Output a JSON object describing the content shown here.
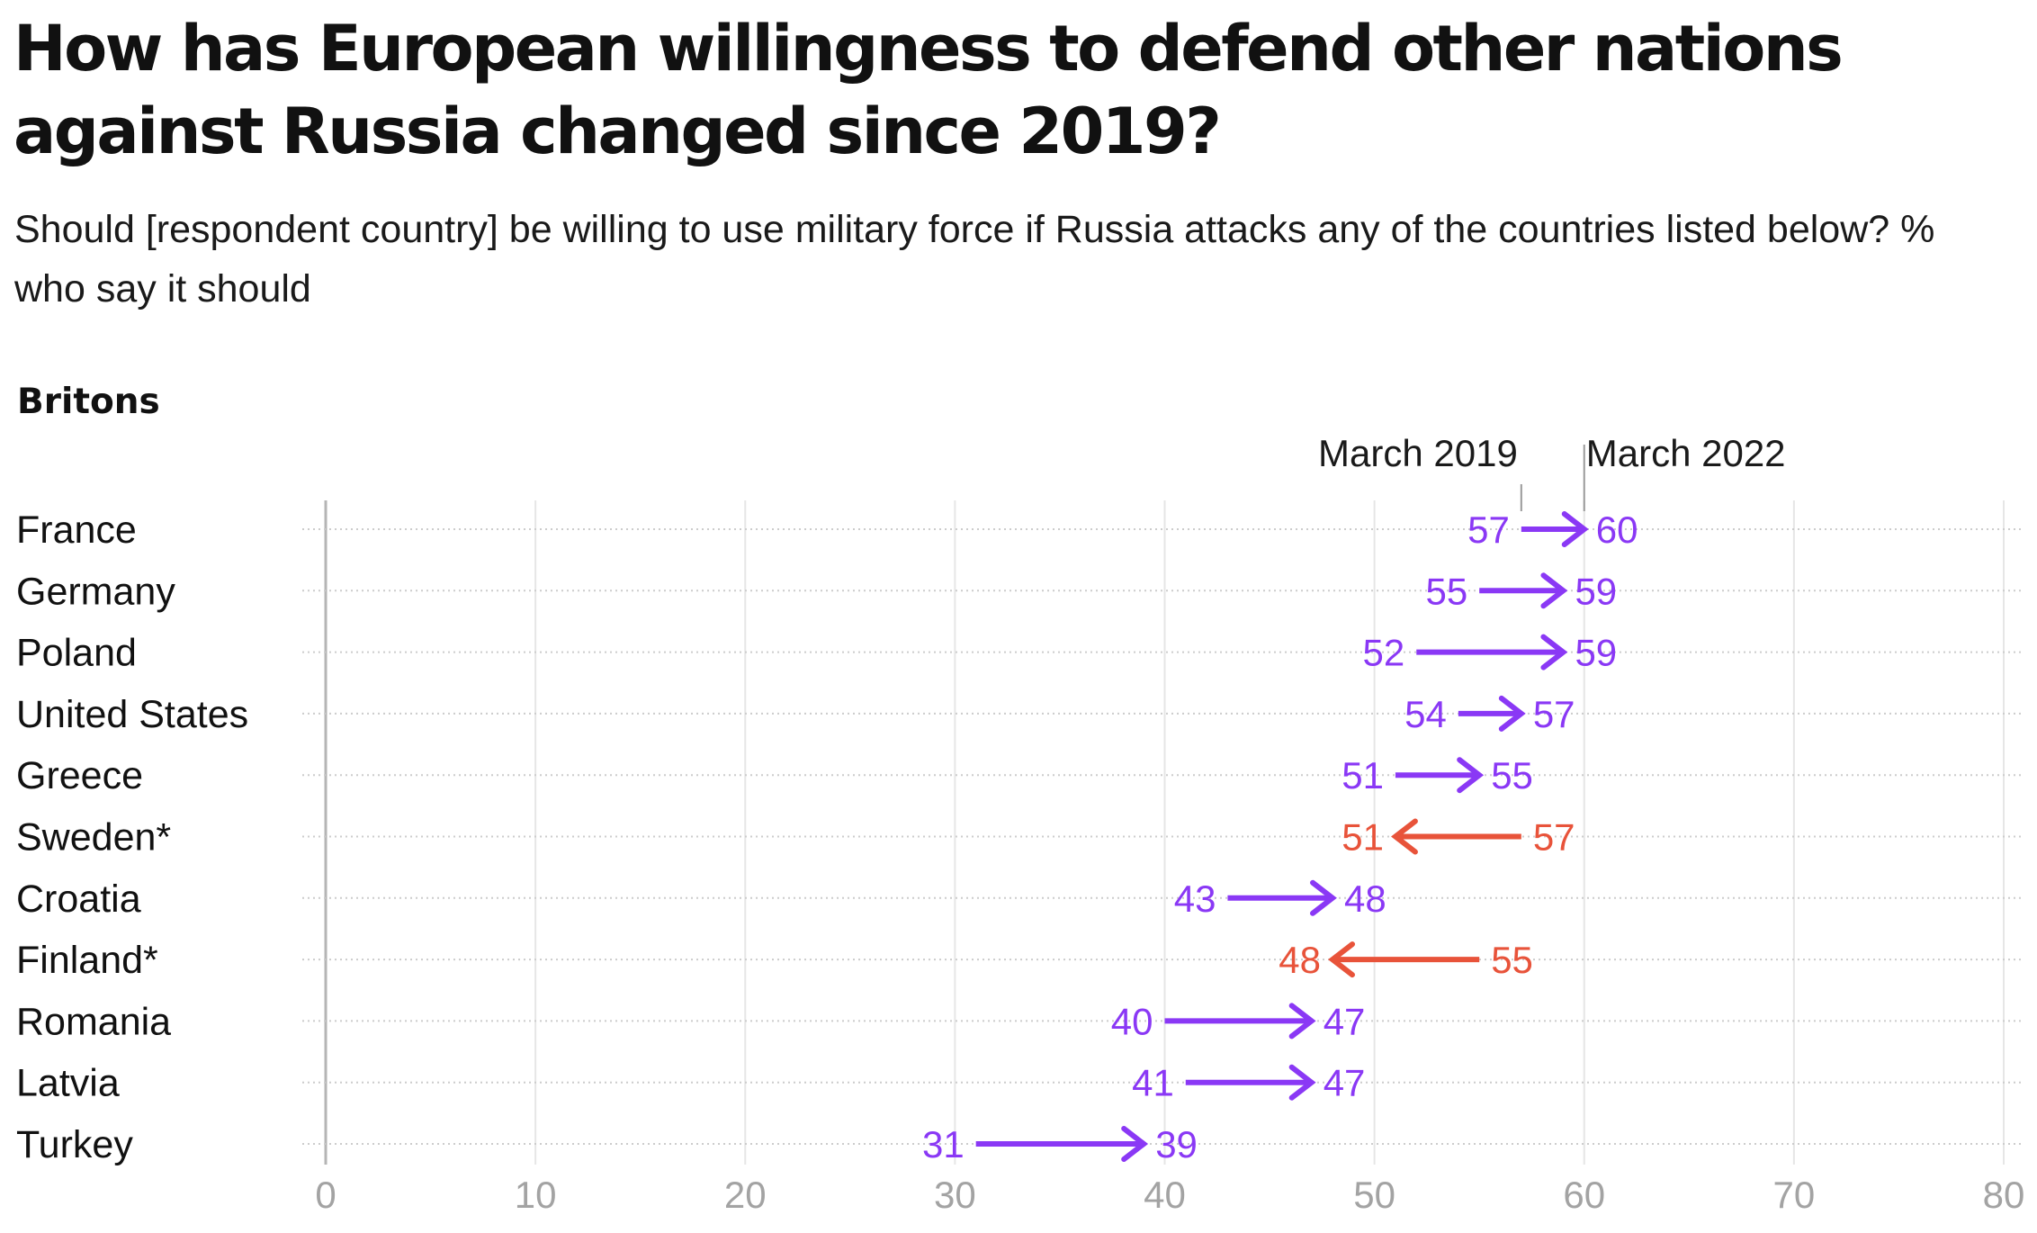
{
  "title": "How has European willingness to defend other nations against Russia changed since 2019?",
  "subtitle": "Should [respondent country] be willing to use military force if Russia attacks any of the countries listed below? % who say it should",
  "panel_label": "Britons",
  "chart_data": {
    "type": "arrow-dot",
    "panel": "Britons",
    "series_labels": [
      "March 2019",
      "March 2022"
    ],
    "x_ticks": [
      0,
      10,
      20,
      30,
      40,
      50,
      60,
      70,
      80
    ],
    "xlim": [
      0,
      80
    ],
    "grid": true,
    "colors": {
      "increase": "#8a38f5",
      "decrease": "#e8533a",
      "axis_text": "#a3a3a3",
      "gridline": "#e6e6e6",
      "row_guide": "#cccccc"
    },
    "rows": [
      {
        "label": "France",
        "march_2019": 57,
        "march_2022": 60
      },
      {
        "label": "Germany",
        "march_2019": 55,
        "march_2022": 59
      },
      {
        "label": "Poland",
        "march_2019": 52,
        "march_2022": 59
      },
      {
        "label": "United States",
        "march_2019": 54,
        "march_2022": 57
      },
      {
        "label": "Greece",
        "march_2019": 51,
        "march_2022": 55
      },
      {
        "label": "Sweden*",
        "march_2019": 57,
        "march_2022": 51
      },
      {
        "label": "Croatia",
        "march_2019": 43,
        "march_2022": 48
      },
      {
        "label": "Finland*",
        "march_2019": 55,
        "march_2022": 48
      },
      {
        "label": "Romania",
        "march_2019": 40,
        "march_2022": 47
      },
      {
        "label": "Latvia",
        "march_2019": 41,
        "march_2022": 47
      },
      {
        "label": "Turkey",
        "march_2019": 31,
        "march_2022": 39
      }
    ]
  }
}
